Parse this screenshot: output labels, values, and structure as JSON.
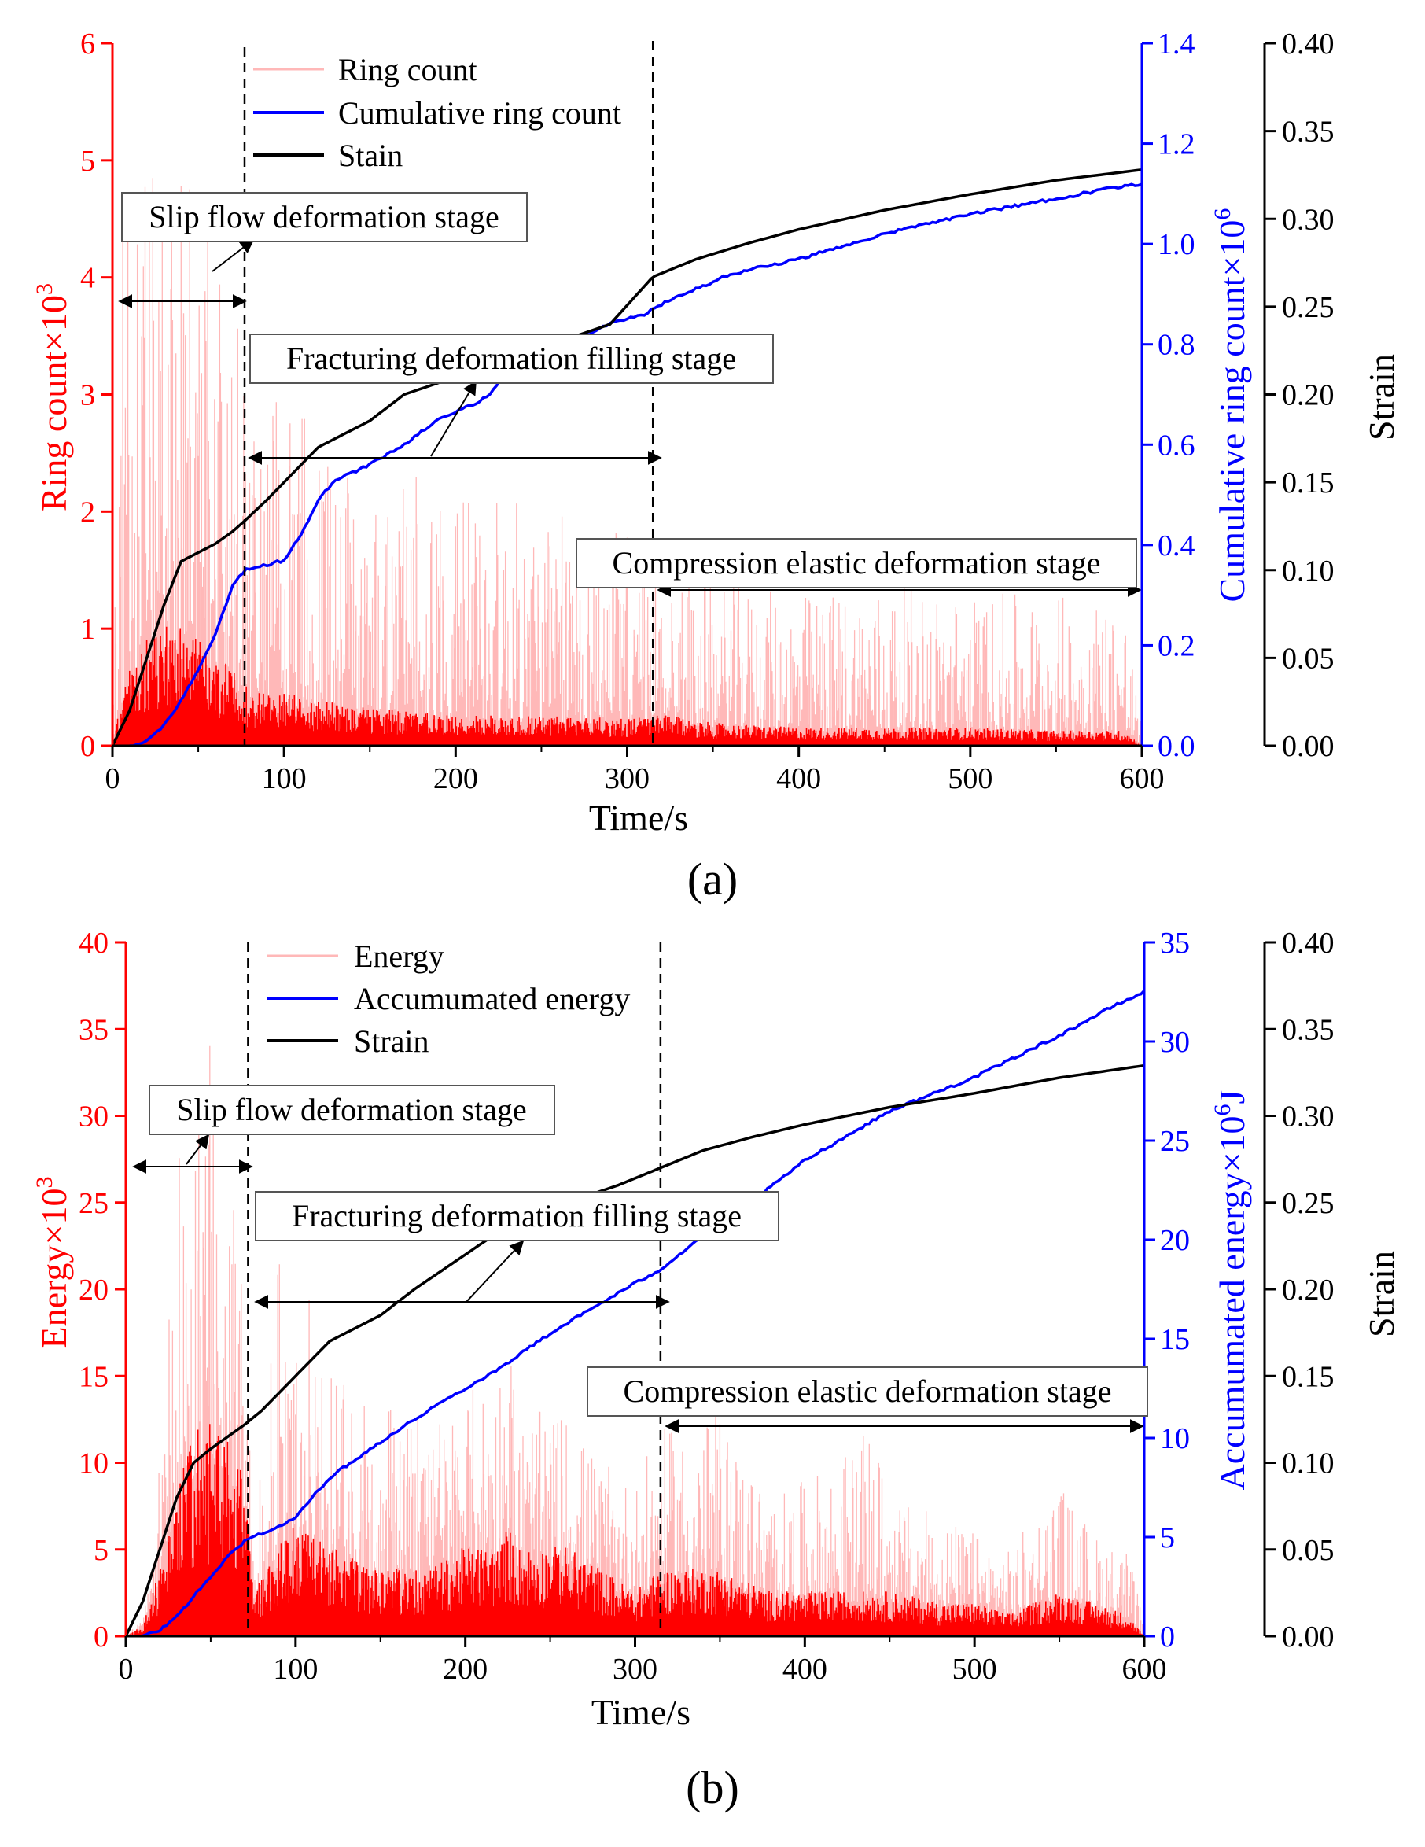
{
  "colors": {
    "left_axis": "#ff0000",
    "right_axis": "#0000ff",
    "strain_axis": "#000000",
    "hits": "#ff0000",
    "hits_light": "#ffb8b8",
    "cumulative": "#0000ff",
    "strain": "#000000"
  },
  "chart_data": [
    {
      "panel_label": "(a)",
      "type": "line",
      "xlabel": "Time/s",
      "xlim": [
        0,
        600
      ],
      "xticks": [
        "0",
        "100",
        "200",
        "300",
        "400",
        "500",
        "600"
      ],
      "y_left": {
        "label_main": "Ring count",
        "label_sym": "×10",
        "label_exp": "3",
        "lim": [
          0,
          6
        ],
        "ticks": [
          "0",
          "1",
          "2",
          "3",
          "4",
          "5",
          "6"
        ]
      },
      "y_right": {
        "label_main": "Cumulative ring count×10",
        "label_exp": "6",
        "lim": [
          0,
          1.4
        ],
        "ticks": [
          "0.0",
          "0.2",
          "0.4",
          "0.6",
          "0.8",
          "1.0",
          "1.2",
          "1.4"
        ]
      },
      "y_strain": {
        "label": "Strain",
        "lim": [
          0,
          0.4
        ],
        "ticks": [
          "0.00",
          "0.05",
          "0.10",
          "0.15",
          "0.20",
          "0.25",
          "0.30",
          "0.35",
          "0.40"
        ]
      },
      "legend": [
        "Ring count",
        "Cumulative ring count",
        "Stain"
      ],
      "stages": [
        {
          "name": "Slip flow deformation stage",
          "t_start": 0,
          "t_end": 77
        },
        {
          "name": "Fracturing deformation filling stage",
          "t_start": 77,
          "t_end": 315
        },
        {
          "name": "Compression elastic deformation stage",
          "t_start": 315,
          "t_end": 600
        }
      ],
      "series": [
        {
          "name": "Ring count",
          "axis": "left",
          "style": "vertical-lines",
          "envelope_t": [
            0,
            5,
            10,
            20,
            30,
            40,
            50,
            60,
            70,
            77,
            90,
            100,
            120,
            150,
            200,
            250,
            300,
            315,
            325,
            350,
            400,
            450,
            500,
            550,
            590,
            600
          ],
          "envelope_peak": [
            0.2,
            4.8,
            4.7,
            4.9,
            4.8,
            4.9,
            4.7,
            4.8,
            4.5,
            3.0,
            2.9,
            3.0,
            2.8,
            2.4,
            2.3,
            2.0,
            1.9,
            1.5,
            1.5,
            1.4,
            1.3,
            1.4,
            1.3,
            1.3,
            1.3,
            0.1
          ],
          "envelope_base": [
            0.0,
            0.3,
            0.5,
            0.7,
            0.8,
            0.8,
            0.7,
            0.6,
            0.5,
            0.4,
            0.35,
            0.35,
            0.3,
            0.25,
            0.2,
            0.2,
            0.18,
            0.2,
            0.2,
            0.15,
            0.12,
            0.12,
            0.12,
            0.1,
            0.1,
            0.0
          ]
        },
        {
          "name": "Cumulative ring count",
          "axis": "right",
          "x": [
            10,
            20,
            30,
            40,
            50,
            60,
            70,
            77,
            90,
            100,
            110,
            120,
            130,
            150,
            170,
            190,
            210,
            220,
            230,
            250,
            270,
            290,
            310,
            320,
            340,
            360,
            400,
            450,
            500,
            550,
            580,
            600
          ],
          "y": [
            0.0,
            0.01,
            0.04,
            0.09,
            0.15,
            0.22,
            0.32,
            0.35,
            0.36,
            0.37,
            0.42,
            0.49,
            0.53,
            0.56,
            0.6,
            0.65,
            0.68,
            0.7,
            0.75,
            0.78,
            0.81,
            0.84,
            0.86,
            0.88,
            0.91,
            0.94,
            0.97,
            1.02,
            1.06,
            1.09,
            1.11,
            1.12
          ]
        },
        {
          "name": "Stain",
          "axis": "strain",
          "x": [
            0,
            10,
            20,
            30,
            40,
            50,
            60,
            70,
            77,
            90,
            100,
            120,
            150,
            170,
            200,
            230,
            260,
            290,
            315,
            340,
            370,
            400,
            450,
            500,
            550,
            600
          ],
          "y": [
            0.0,
            0.02,
            0.05,
            0.08,
            0.105,
            0.11,
            0.115,
            0.122,
            0.128,
            0.14,
            0.15,
            0.17,
            0.185,
            0.2,
            0.21,
            0.22,
            0.23,
            0.24,
            0.267,
            0.277,
            0.286,
            0.294,
            0.305,
            0.314,
            0.322,
            0.328
          ]
        }
      ]
    },
    {
      "panel_label": "(b)",
      "type": "line",
      "xlabel": "Time/s",
      "xlim": [
        0,
        600
      ],
      "xticks": [
        "0",
        "100",
        "200",
        "300",
        "400",
        "500",
        "600"
      ],
      "y_left": {
        "label_main": "Energy×10",
        "label_exp": "3",
        "lim": [
          0,
          40
        ],
        "ticks": [
          "0",
          "5",
          "10",
          "15",
          "20",
          "25",
          "30",
          "35",
          "40"
        ]
      },
      "y_right": {
        "label_main": "Accumumated energy×10",
        "label_exp": "6",
        "label_unit": "J",
        "lim": [
          0,
          35
        ],
        "ticks": [
          "0",
          "5",
          "10",
          "15",
          "20",
          "25",
          "30",
          "35"
        ]
      },
      "y_strain": {
        "label": "Strain",
        "lim": [
          0,
          0.4
        ],
        "ticks": [
          "0.00",
          "0.05",
          "0.10",
          "0.15",
          "0.20",
          "0.25",
          "0.30",
          "0.35",
          "0.40"
        ]
      },
      "legend": [
        "Energy",
        "Accumumated energy",
        "Strain"
      ],
      "stages": [
        {
          "name": "Slip flow deformation stage",
          "t_start": 0,
          "t_end": 72
        },
        {
          "name": "Fracturing deformation filling stage",
          "t_start": 72,
          "t_end": 315
        },
        {
          "name": "Compression elastic deformation stage",
          "t_start": 315,
          "t_end": 600
        }
      ],
      "series": [
        {
          "name": "Energy",
          "axis": "left",
          "style": "vertical-lines",
          "envelope_t": [
            0,
            10,
            20,
            30,
            40,
            50,
            60,
            70,
            75,
            90,
            100,
            120,
            150,
            180,
            200,
            220,
            225,
            230,
            260,
            280,
            300,
            315,
            330,
            350,
            380,
            400,
            440,
            450,
            480,
            500,
            520,
            550,
            570,
            590,
            600
          ],
          "envelope_peak": [
            0,
            1,
            10,
            28,
            27,
            35,
            28,
            20,
            5,
            23,
            23,
            15,
            14,
            13,
            14,
            16,
            22,
            13,
            13,
            10,
            9,
            12,
            12,
            13,
            8,
            9,
            12,
            8,
            7,
            6,
            5,
            9,
            6,
            5,
            1
          ],
          "envelope_base": [
            0,
            0.5,
            3,
            7,
            9,
            10,
            9,
            7,
            2,
            4,
            5,
            4,
            3,
            3,
            4,
            4,
            5,
            4,
            4,
            3,
            2,
            3,
            3,
            3,
            2,
            2,
            2,
            2,
            1.5,
            1.5,
            1,
            2,
            1.5,
            1,
            0
          ]
        },
        {
          "name": "Accumumated energy",
          "axis": "right",
          "x": [
            10,
            20,
            30,
            40,
            50,
            60,
            70,
            80,
            90,
            100,
            120,
            150,
            180,
            200,
            220,
            240,
            260,
            280,
            300,
            315,
            340,
            370,
            400,
            450,
            500,
            550,
            580,
            600
          ],
          "y": [
            0,
            0.3,
            1,
            2,
            3,
            4,
            4.8,
            5.2,
            5.5,
            6,
            8,
            9.8,
            11.5,
            12.5,
            13.5,
            14.7,
            15.8,
            16.8,
            17.8,
            18.5,
            20.2,
            22,
            24,
            26.5,
            28.2,
            30.3,
            31.7,
            32.5
          ]
        },
        {
          "name": "Strain",
          "axis": "strain",
          "x": [
            0,
            10,
            20,
            30,
            40,
            50,
            60,
            70,
            80,
            90,
            100,
            120,
            150,
            170,
            200,
            230,
            260,
            290,
            315,
            340,
            370,
            400,
            450,
            500,
            550,
            600
          ],
          "y": [
            0.0,
            0.02,
            0.05,
            0.08,
            0.1,
            0.108,
            0.115,
            0.122,
            0.13,
            0.14,
            0.15,
            0.17,
            0.185,
            0.2,
            0.22,
            0.24,
            0.25,
            0.26,
            0.27,
            0.28,
            0.288,
            0.295,
            0.305,
            0.313,
            0.322,
            0.329
          ]
        }
      ]
    }
  ]
}
